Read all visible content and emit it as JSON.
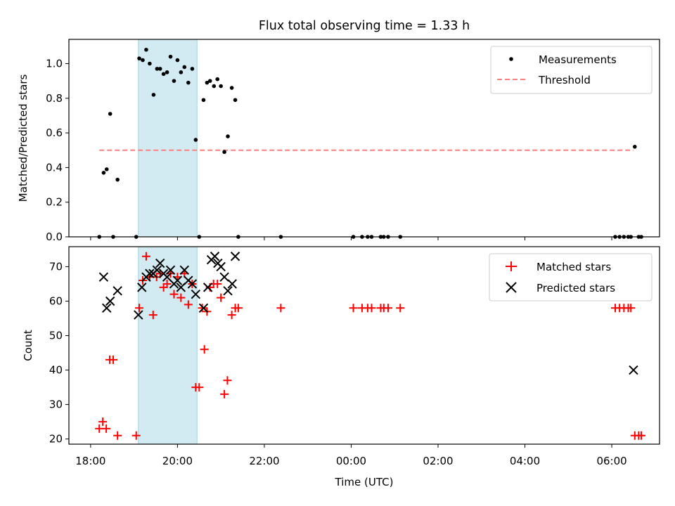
{
  "chart_data": [
    {
      "type": "scatter",
      "title": "Flux total observing time = 1.33 h",
      "xlabel": "",
      "ylabel": "Matched/Predicted stars",
      "xlim": [
        17.5,
        31.1
      ],
      "ylim": [
        0,
        1.14
      ],
      "yticks": [
        0.0,
        0.2,
        0.4,
        0.6,
        0.8,
        1.0
      ],
      "ytick_labels": [
        "0.0",
        "0.2",
        "0.4",
        "0.6",
        "0.8",
        "1.0"
      ],
      "legend": {
        "position": "top-right",
        "entries": [
          "Measurements",
          "Threshold"
        ]
      },
      "shaded_interval": [
        19.1,
        20.45
      ],
      "threshold": {
        "name": "Threshold",
        "y": 0.5,
        "x_range": [
          18.2,
          30.5
        ],
        "color": "#ff7f7f"
      },
      "series": [
        {
          "name": "Measurements",
          "color": "#000000",
          "x": [
            18.2,
            18.3,
            18.37,
            18.45,
            18.52,
            18.62,
            19.05,
            19.12,
            19.2,
            19.28,
            19.36,
            19.45,
            19.53,
            19.6,
            19.68,
            19.76,
            19.84,
            19.92,
            20.0,
            20.08,
            20.16,
            20.25,
            20.34,
            20.42,
            20.5,
            20.6,
            20.68,
            20.75,
            20.84,
            20.92,
            21.0,
            21.08,
            21.16,
            21.25,
            21.33,
            21.4,
            22.38,
            24.05,
            24.25,
            24.38,
            24.47,
            24.68,
            24.75,
            24.85,
            25.13,
            30.08,
            30.18,
            30.28,
            30.38,
            30.44,
            30.53,
            30.62,
            30.68
          ],
          "y": [
            0,
            0.37,
            0.39,
            0.71,
            0,
            0.33,
            0,
            1.03,
            1.02,
            1.08,
            1.0,
            0.82,
            0.97,
            0.97,
            0.94,
            0.95,
            1.04,
            0.9,
            1.02,
            0.95,
            0.98,
            0.89,
            0.97,
            0.56,
            0,
            0.79,
            0.89,
            0.9,
            0.87,
            0.91,
            0.87,
            0.49,
            0.58,
            0.86,
            0.79,
            0,
            0,
            0,
            0,
            0,
            0,
            0,
            0,
            0,
            0,
            0,
            0,
            0,
            0,
            0,
            0.52,
            0,
            0
          ]
        }
      ]
    },
    {
      "type": "scatter",
      "title": "",
      "xlabel": "Time (UTC)",
      "ylabel": "Count",
      "xlim": [
        17.5,
        31.1
      ],
      "ylim": [
        18.5,
        75.8
      ],
      "xticks": [
        18,
        20,
        22,
        24,
        26,
        28,
        30
      ],
      "xtick_labels": [
        "18:00",
        "20:00",
        "22:00",
        "00:00",
        "02:00",
        "04:00",
        "06:00"
      ],
      "yticks": [
        20,
        30,
        40,
        50,
        60,
        70
      ],
      "ytick_labels": [
        "20",
        "30",
        "40",
        "50",
        "60",
        "70"
      ],
      "legend": {
        "position": "top-right",
        "entries": [
          "Matched stars",
          "Predicted stars"
        ]
      },
      "shaded_interval": [
        19.1,
        20.45
      ],
      "series": [
        {
          "name": "Matched stars",
          "color": "#ff0000",
          "marker": "plus",
          "x": [
            18.2,
            18.28,
            18.36,
            18.44,
            18.52,
            18.62,
            19.05,
            19.12,
            19.2,
            19.28,
            19.36,
            19.44,
            19.52,
            19.6,
            19.68,
            19.76,
            19.84,
            19.92,
            20.0,
            20.08,
            20.16,
            20.25,
            20.34,
            20.42,
            20.5,
            20.57,
            20.62,
            20.68,
            20.75,
            20.83,
            20.92,
            21.0,
            21.08,
            21.15,
            21.25,
            21.33,
            21.4,
            22.38,
            24.05,
            24.25,
            24.38,
            24.47,
            24.68,
            24.75,
            24.85,
            25.13,
            30.08,
            30.18,
            30.28,
            30.38,
            30.44,
            30.53,
            30.62,
            30.68
          ],
          "y": [
            23,
            25,
            23,
            43,
            43,
            21,
            21,
            58,
            66,
            73,
            67,
            56,
            67,
            68,
            64,
            65,
            68,
            62,
            67,
            61,
            68,
            59,
            65,
            35,
            35,
            58,
            46,
            57,
            64,
            65,
            65,
            61,
            33,
            37,
            56,
            58,
            58,
            58,
            58,
            58,
            58,
            58,
            58,
            58,
            58,
            58,
            58,
            58,
            58,
            58,
            58,
            21,
            21,
            21
          ]
        },
        {
          "name": "Predicted stars",
          "color": "#000000",
          "marker": "x",
          "x": [
            18.3,
            18.37,
            18.45,
            18.62,
            19.1,
            19.18,
            19.28,
            19.36,
            19.44,
            19.53,
            19.6,
            19.68,
            19.76,
            19.84,
            19.92,
            20.0,
            20.08,
            20.16,
            20.25,
            20.34,
            20.42,
            20.6,
            20.7,
            20.78,
            20.86,
            20.93,
            21.0,
            21.08,
            21.16,
            21.26,
            21.33,
            30.5
          ],
          "y": [
            67,
            58,
            60,
            63,
            56,
            64,
            67,
            68,
            68,
            69,
            71,
            68,
            67,
            69,
            65,
            66,
            64,
            69,
            66,
            65,
            62,
            58,
            64,
            72,
            73,
            71,
            70,
            67,
            63,
            65,
            73,
            40
          ]
        }
      ]
    }
  ]
}
